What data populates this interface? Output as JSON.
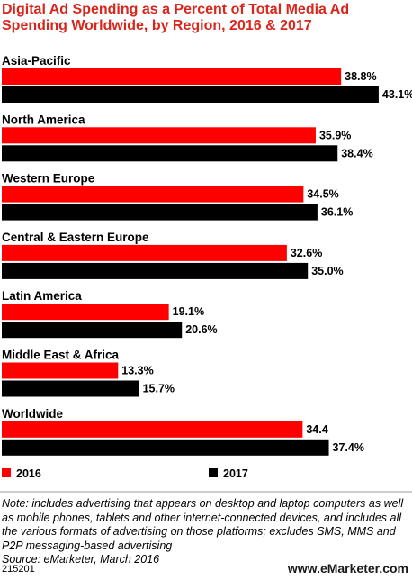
{
  "title": "Digital Ad Spending as a Percent of Total Media Ad Spending Worldwide, by Region, 2016 & 2017",
  "chart_data": {
    "type": "bar",
    "orientation": "horizontal",
    "categories": [
      "Asia-Pacific",
      "North America",
      "Western Europe",
      "Central & Eastern Europe",
      "Latin America",
      "Middle East & Africa",
      "Worldwide"
    ],
    "series": [
      {
        "name": "2016",
        "color": "#ff0000",
        "values": [
          38.8,
          35.9,
          34.5,
          32.6,
          19.1,
          13.3,
          34.4
        ],
        "labels": [
          "38.8%",
          "35.9%",
          "34.5%",
          "32.6%",
          "19.1%",
          "13.3%",
          "34.4"
        ]
      },
      {
        "name": "2017",
        "color": "#000000",
        "values": [
          43.1,
          38.4,
          36.1,
          35.0,
          20.6,
          15.7,
          37.4
        ],
        "labels": [
          "43.1%",
          "38.4%",
          "36.1%",
          "35.0%",
          "20.6%",
          "15.7%",
          "37.4%"
        ]
      }
    ],
    "legend": "bottom",
    "grid": false
  },
  "footer": {
    "note": "Note: includes advertising that appears on desktop and laptop computers as well as mobile phones, tablets and other internet-connected devices, and includes all the various formats of advertising on those platforms; excludes SMS, MMS and P2P messaging-based advertising",
    "source": "Source: eMarketer, March 2016",
    "chart_id": "215201",
    "brand": "www.eMarketer.com"
  }
}
